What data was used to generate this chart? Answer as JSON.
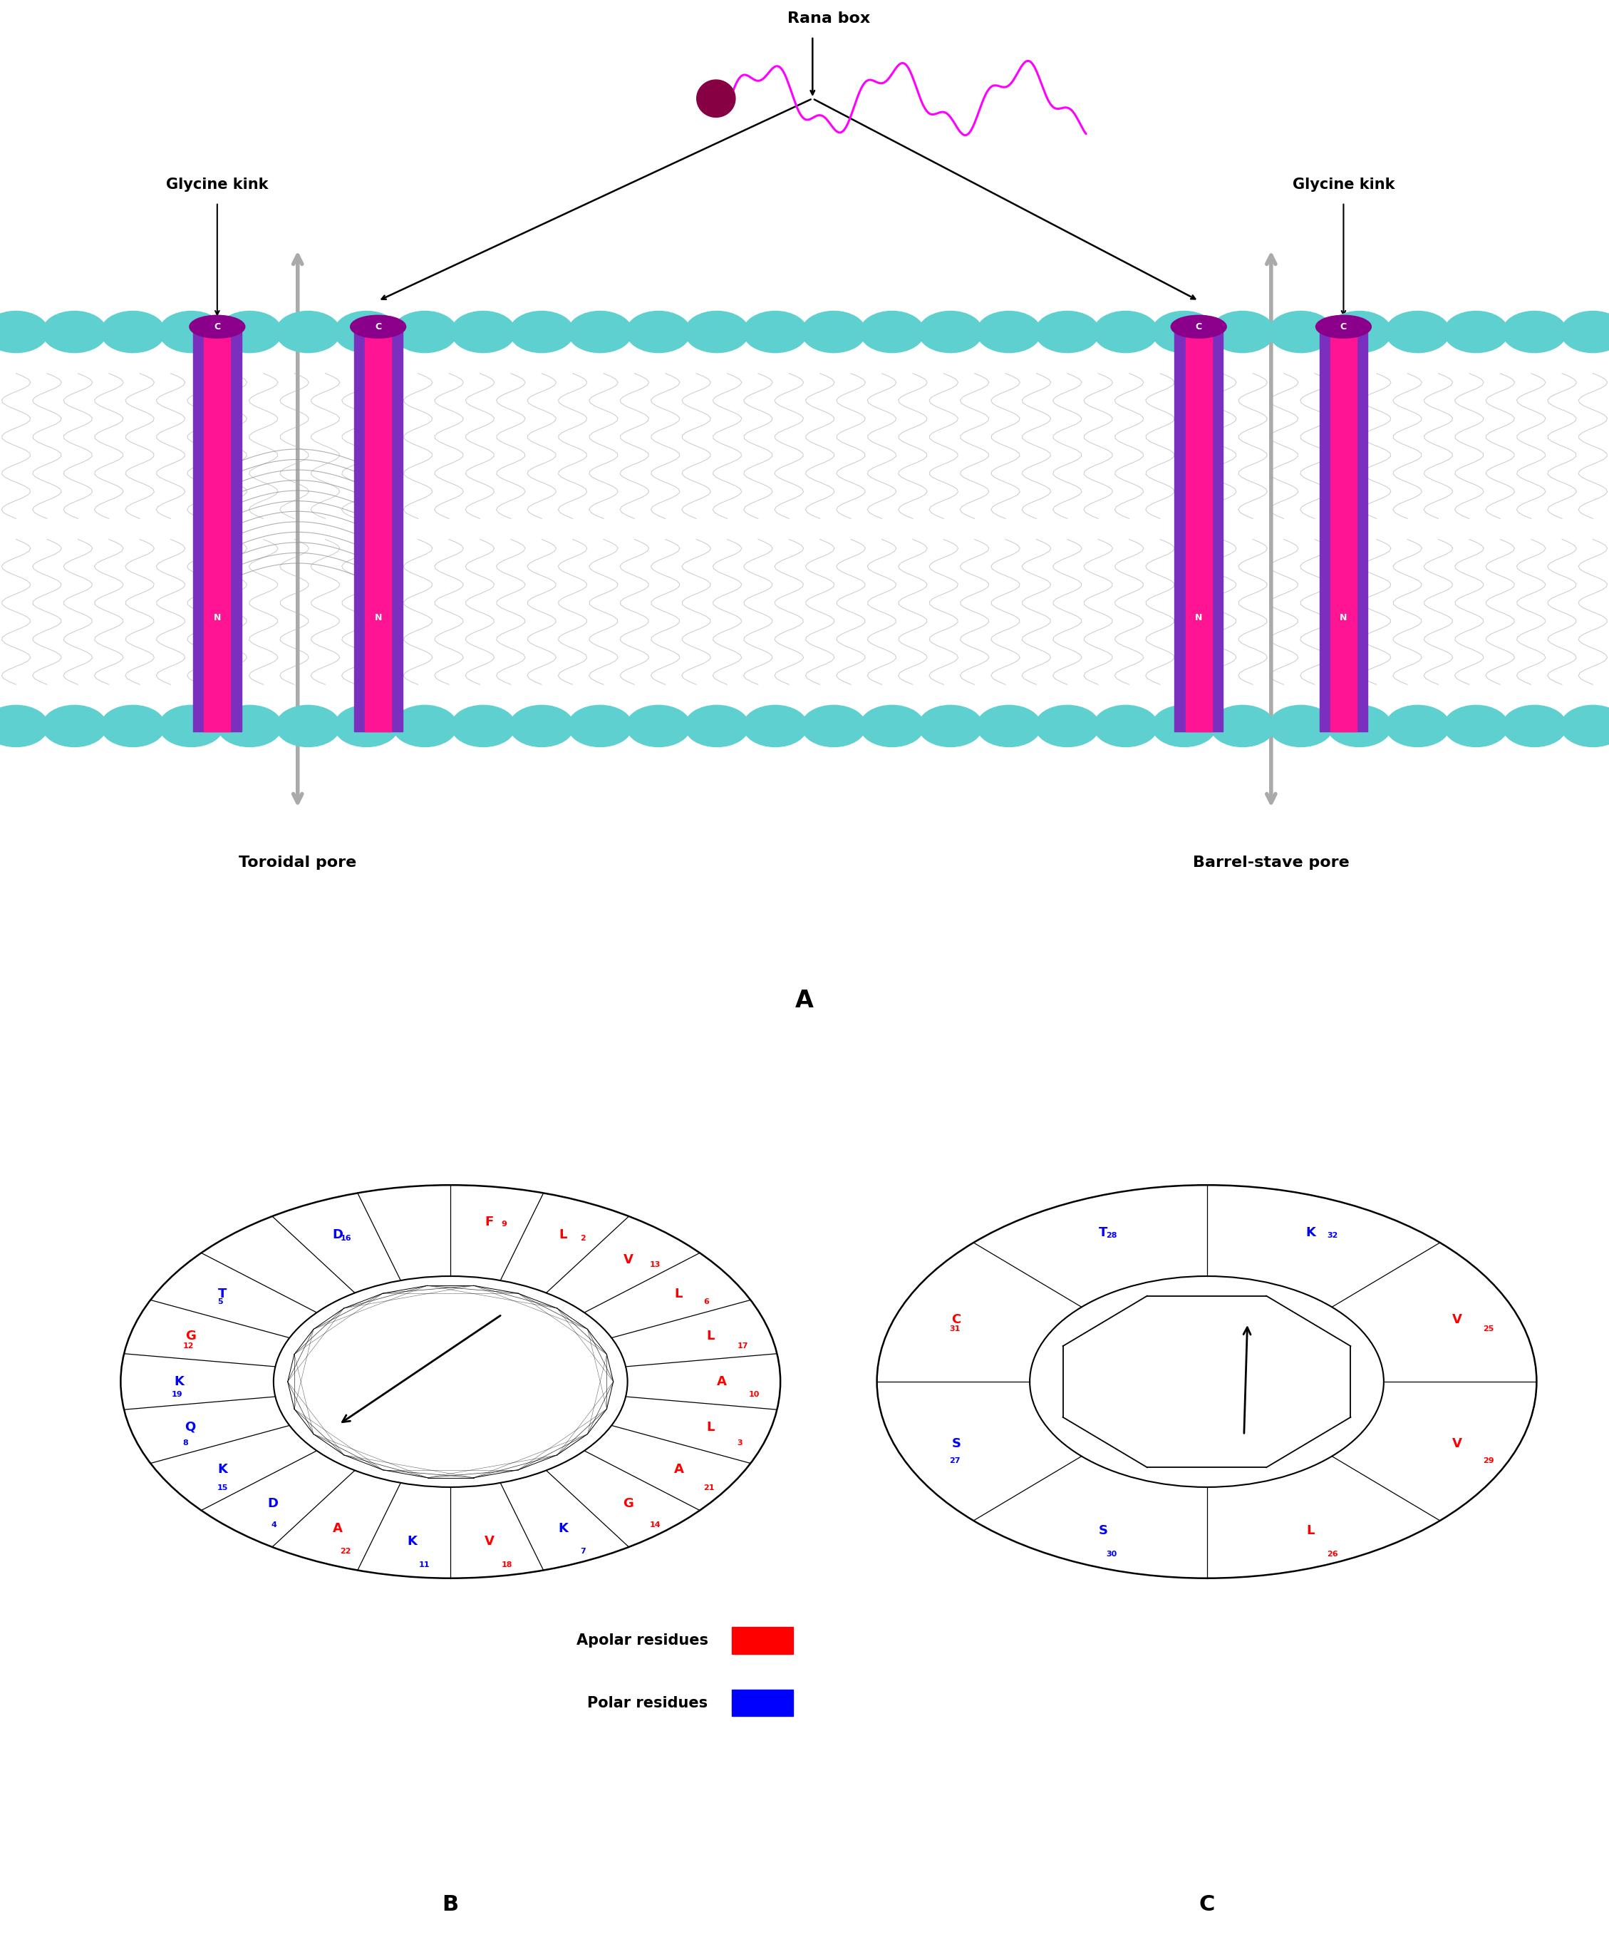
{
  "panel_A": {
    "title": "A",
    "membrane_head_color": "#5ED0D0",
    "membrane_tail_color": "#C8C8C8",
    "helix_pink": "#FF1493",
    "helix_purple": "#7B2FBE",
    "helix_cap_color": "#8B008B",
    "arrow_gray": "#AAAAAA",
    "rana_box_color": "#FF00FF",
    "rana_dot_color": "#660066",
    "text_color": "#000000",
    "C_text": "white",
    "N_text": "white",
    "labels": {
      "rana_box": "Rana box",
      "glycine_kink": "Glycine kink",
      "toroidal_pore": "Toroidal pore",
      "barrel_stave_pore": "Barrel-stave pore",
      "panel_label": "A"
    }
  },
  "panel_B": {
    "title": "B",
    "n_segments": 22,
    "residues": [
      {
        "letter": "F",
        "num": "9",
        "color": "red",
        "seg": 0
      },
      {
        "letter": "L",
        "num": "2",
        "color": "red",
        "seg": 1
      },
      {
        "letter": "V",
        "num": "13",
        "color": "red",
        "seg": 2
      },
      {
        "letter": "L",
        "num": "6",
        "color": "red",
        "seg": 3
      },
      {
        "letter": "L",
        "num": "17",
        "color": "red",
        "seg": 4
      },
      {
        "letter": "A",
        "num": "10",
        "color": "red",
        "seg": 5
      },
      {
        "letter": "L",
        "num": "3",
        "color": "red",
        "seg": 6
      },
      {
        "letter": "A",
        "num": "21",
        "color": "red",
        "seg": 7
      },
      {
        "letter": "G",
        "num": "14",
        "color": "red",
        "seg": 8
      },
      {
        "letter": "K",
        "num": "7",
        "color": "blue",
        "seg": 9
      },
      {
        "letter": "V",
        "num": "18",
        "color": "red",
        "seg": 10
      },
      {
        "letter": "K",
        "num": "11",
        "color": "blue",
        "seg": 11
      },
      {
        "letter": "A",
        "num": "22",
        "color": "red",
        "seg": 12
      },
      {
        "letter": "D",
        "num": "4",
        "color": "blue",
        "seg": 13
      },
      {
        "letter": "K",
        "num": "15",
        "color": "blue",
        "seg": 14
      },
      {
        "letter": "Q",
        "num": "8",
        "color": "blue",
        "seg": 15
      },
      {
        "letter": "K",
        "num": "19",
        "color": "blue",
        "seg": 16
      },
      {
        "letter": "G",
        "num": "12",
        "color": "red",
        "seg": 17
      },
      {
        "letter": "T",
        "num": "5",
        "color": "blue",
        "seg": 18
      },
      {
        "letter": "",
        "num": "",
        "color": "red",
        "seg": 19
      },
      {
        "letter": "D",
        "num": "16",
        "color": "blue",
        "seg": 20
      },
      {
        "letter": "",
        "num": "",
        "color": "blue",
        "seg": 21
      }
    ]
  },
  "panel_C": {
    "title": "C",
    "n_segments": 8,
    "residues": [
      {
        "letter": "K",
        "num": "32",
        "color": "blue",
        "seg": 0
      },
      {
        "letter": "V",
        "num": "25",
        "color": "red",
        "seg": 1
      },
      {
        "letter": "V",
        "num": "29",
        "color": "red",
        "seg": 2
      },
      {
        "letter": "L",
        "num": "26",
        "color": "red",
        "seg": 3
      },
      {
        "letter": "S",
        "num": "30",
        "color": "blue",
        "seg": 4
      },
      {
        "letter": "S",
        "num": "27",
        "color": "blue",
        "seg": 5
      },
      {
        "letter": "C",
        "num": "31",
        "color": "red",
        "seg": 6
      },
      {
        "letter": "T",
        "num": "28",
        "color": "blue",
        "seg": 7
      }
    ]
  },
  "legend": {
    "apolar_label": "Apolar residues",
    "polar_label": "Polar residues",
    "apolar_color": "red",
    "polar_color": "blue"
  }
}
